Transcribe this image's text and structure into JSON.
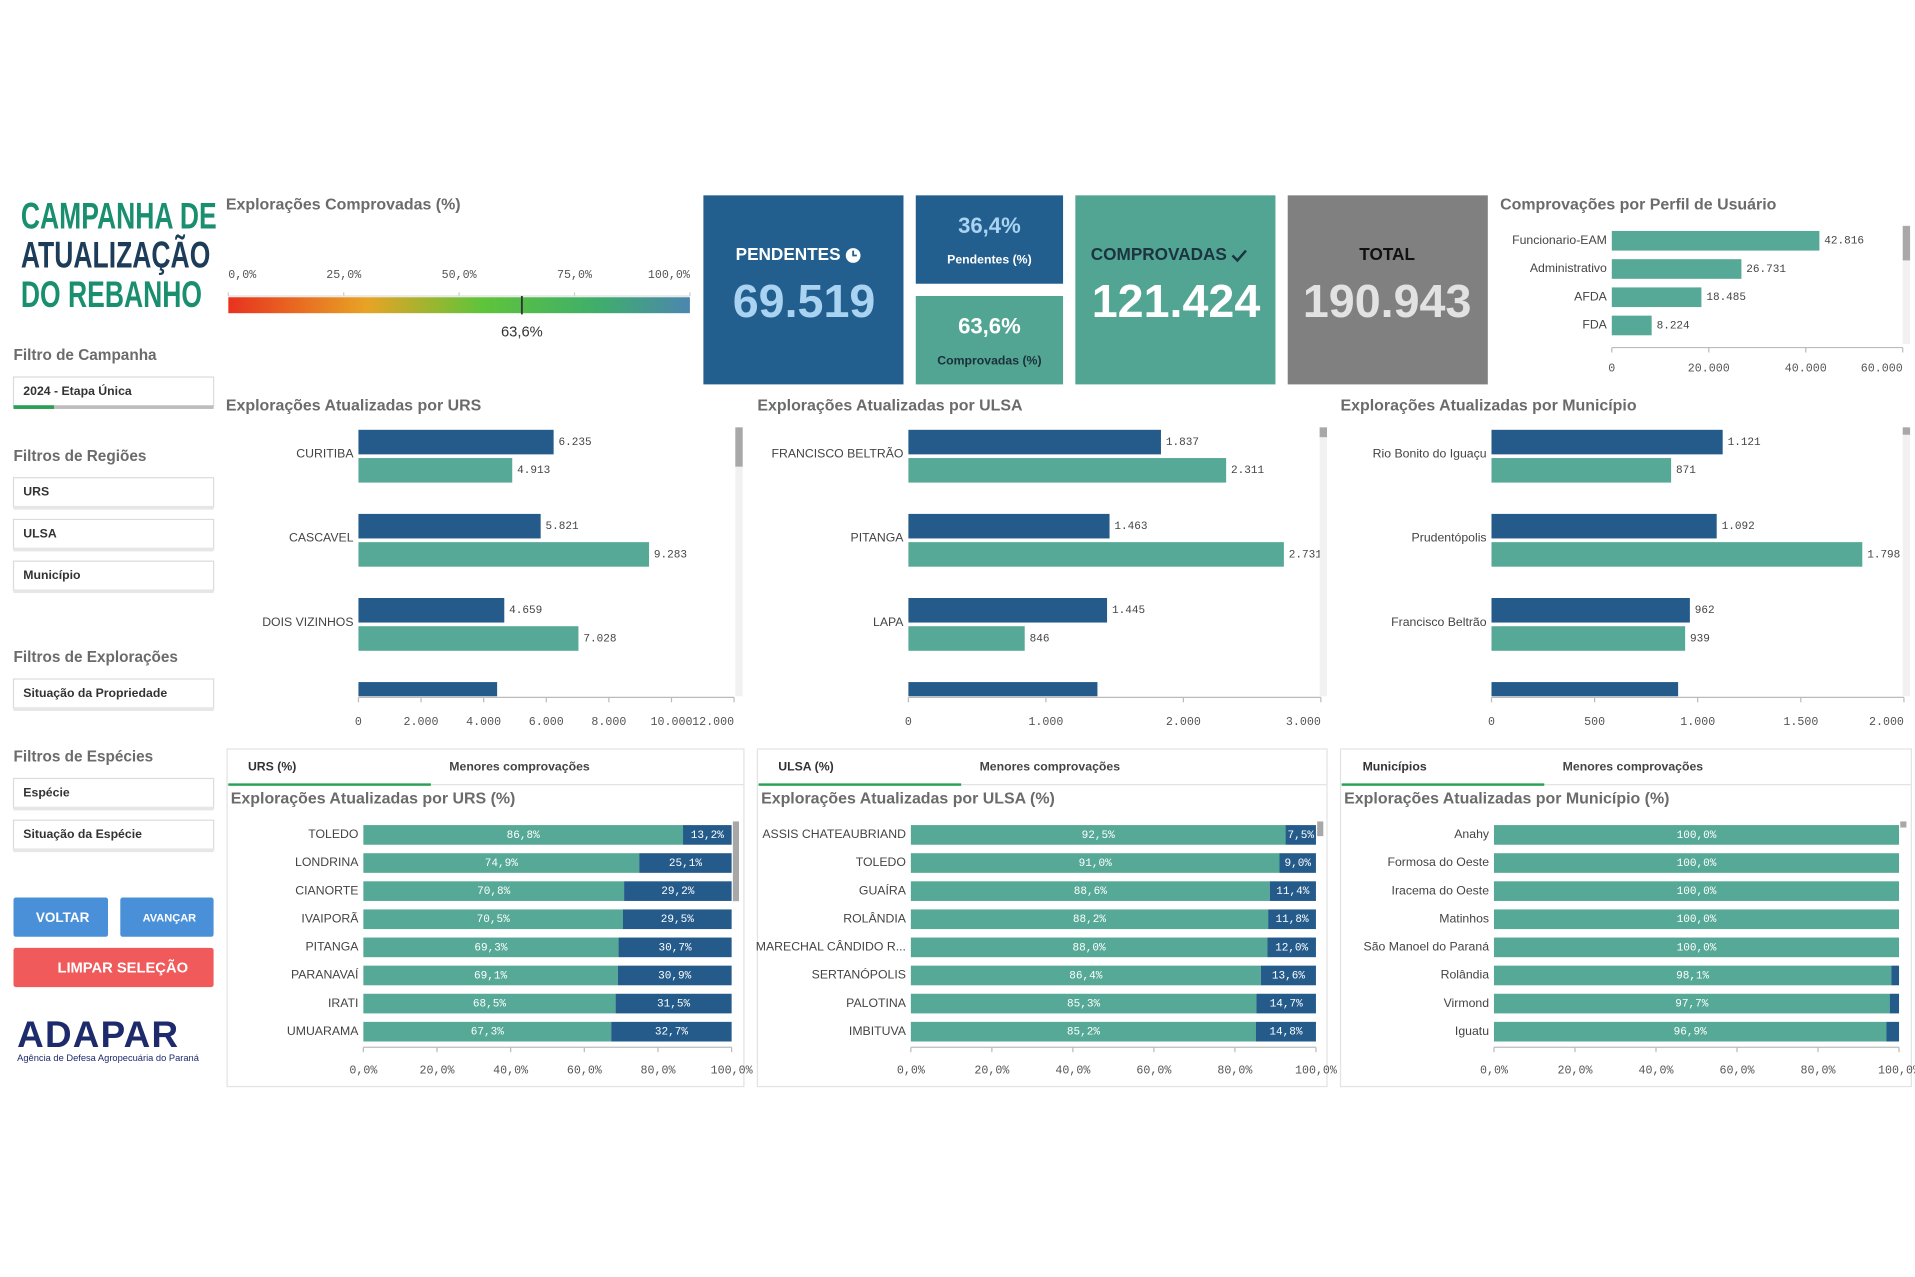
{
  "sidebar": {
    "title": [
      "CAMPANHA DE",
      "ATUALIZAÇÃO",
      "DO REBANHO"
    ],
    "filters": [
      {
        "heading": "Filtro de Campanha",
        "items": [
          "2024 - Etapa Única"
        ]
      },
      {
        "heading": "Filtros de Regiões",
        "items": [
          "URS",
          "ULSA",
          "Município"
        ]
      },
      {
        "heading": "Filtros de Explorações",
        "items": [
          "Situação da Propriedade"
        ]
      },
      {
        "heading": "Filtros de Espécies",
        "items": [
          "Espécie",
          "Situação da Espécie"
        ]
      }
    ],
    "buttons": [
      "VOLTAR",
      "AVANÇAR",
      "LIMPAR SELEÇÃO"
    ],
    "logo": "ADAPAR",
    "logo_subtitle": "Agência de Defesa Agropecuária do Paraná"
  },
  "kpis": [
    {
      "label": "PENDENTES",
      "value": "69.519"
    },
    {
      "value": "36,4%",
      "label": "Pendentes (%)"
    },
    {
      "value": "63,6%",
      "label": "Comprovadas (%)"
    },
    {
      "label": "COMPROVADAS",
      "value": "121.424"
    },
    {
      "label": "TOTAL",
      "value": "190.943"
    }
  ],
  "chart_data": [
    {
      "type": "gauge",
      "title": "Explorações Comprovadas (%)",
      "value": 63.6,
      "value_label": "63,6%",
      "xlim": [
        0,
        100
      ],
      "xticks": [
        {
          "value": 0,
          "label": "0,0%"
        },
        {
          "value": 25,
          "label": "25,0%"
        },
        {
          "value": 50,
          "label": "50,0%"
        },
        {
          "value": 75,
          "label": "75,0%"
        },
        {
          "value": 100,
          "label": "100,0%"
        }
      ]
    },
    {
      "type": "bar",
      "title": "Comprovações por Perfil de Usuário",
      "categories": [
        "Funcionario-EAM",
        "Administrativo",
        "AFDA",
        "FDA"
      ],
      "series": [
        {
          "color": "#56a996",
          "values": [
            42816,
            26731,
            18485,
            8224
          ],
          "value_labels": [
            "42.816",
            "26.731",
            "18.485",
            "8.224"
          ]
        }
      ],
      "xlim": [
        0,
        60000
      ],
      "xticks": [
        0,
        {
          "value": 20000,
          "label": "20.000"
        },
        {
          "value": 40000,
          "label": "40.000"
        },
        {
          "value": 60000,
          "label": "60.000"
        }
      ]
    },
    {
      "type": "bar",
      "title": "Explorações Atualizadas por URS",
      "categories": [
        "CURITIBA",
        "CASCAVEL",
        "DOIS VIZINHOS",
        null
      ],
      "series": [
        {
          "color": "#245b8a",
          "values": [
            6235,
            5821,
            4659,
            4430
          ],
          "value_labels": [
            "6.235",
            "5.821",
            "4.659",
            null
          ]
        },
        {
          "color": "#56a996",
          "values": [
            4913,
            9283,
            7028,
            null
          ],
          "value_labels": [
            "4.913",
            "9.283",
            "7.028",
            null
          ]
        }
      ],
      "xlim": [
        0,
        12000
      ],
      "xticks": [
        0,
        {
          "value": 2000,
          "label": "2.000"
        },
        {
          "value": 4000,
          "label": "4.000"
        },
        {
          "value": 6000,
          "label": "6.000"
        },
        {
          "value": 8000,
          "label": "8.000"
        },
        {
          "value": 10000,
          "label": "10.000"
        },
        {
          "value": 12000,
          "label": "12.000"
        }
      ]
    },
    {
      "type": "bar",
      "title": "Explorações Atualizadas por ULSA",
      "categories": [
        "FRANCISCO BELTRÃO",
        "PITANGA",
        "LAPA",
        null
      ],
      "series": [
        {
          "color": "#245b8a",
          "values": [
            1837,
            1463,
            1445,
            1375
          ],
          "value_labels": [
            "1.837",
            "1.463",
            "1.445",
            null
          ]
        },
        {
          "color": "#56a996",
          "values": [
            2311,
            2731,
            846,
            null
          ],
          "value_labels": [
            "2.311",
            "2.731",
            "846",
            null
          ]
        }
      ],
      "xlim": [
        0,
        3000
      ],
      "xticks": [
        0,
        {
          "value": 1000,
          "label": "1.000"
        },
        {
          "value": 2000,
          "label": "2.000"
        },
        {
          "value": 3000,
          "label": "3.000"
        }
      ]
    },
    {
      "type": "bar",
      "title": "Explorações Atualizadas por Município",
      "categories": [
        "Rio Bonito do Iguaçu",
        "Prudentópolis",
        "Francisco Beltrão",
        null
      ],
      "series": [
        {
          "color": "#245b8a",
          "values": [
            1121,
            1092,
            962,
            905
          ],
          "value_labels": [
            "1.121",
            "1.092",
            "962",
            null
          ]
        },
        {
          "color": "#56a996",
          "values": [
            871,
            1798,
            939,
            null
          ],
          "value_labels": [
            "871",
            "1.798",
            "939",
            null
          ]
        }
      ],
      "xlim": [
        0,
        2000
      ],
      "xticks": [
        0,
        500,
        {
          "value": 1000,
          "label": "1.000"
        },
        {
          "value": 1500,
          "label": "1.500"
        },
        {
          "value": 2000,
          "label": "2.000"
        }
      ]
    },
    {
      "type": "stacked_bar",
      "tabs": [
        "URS (%)",
        "Menores comprovações"
      ],
      "title": "Explorações Atualizadas por URS (%)",
      "categories": [
        "TOLEDO",
        "LONDRINA",
        "CIANORTE",
        "IVAIPORÃ",
        "PITANGA",
        "PARANAVAÍ",
        "IRATI",
        "UMUARAMA"
      ],
      "series": [
        {
          "color": "#56a996",
          "values": [
            86.8,
            74.9,
            70.8,
            70.5,
            69.3,
            69.1,
            68.5,
            67.3
          ],
          "value_labels": [
            "86,8%",
            "74,9%",
            "70,8%",
            "70,5%",
            "69,3%",
            "69,1%",
            "68,5%",
            "67,3%"
          ]
        },
        {
          "color": "#245b8a",
          "values": [
            13.2,
            25.1,
            29.2,
            29.5,
            30.7,
            30.9,
            31.5,
            32.7
          ],
          "value_labels": [
            "13,2%",
            "25,1%",
            "29,2%",
            "29,5%",
            "30,7%",
            "30,9%",
            "31,5%",
            "32,7%"
          ]
        }
      ],
      "xlim": [
        0,
        100
      ],
      "xticks": [
        {
          "value": 0,
          "label": "0,0%"
        },
        {
          "value": 20,
          "label": "20,0%"
        },
        {
          "value": 40,
          "label": "40,0%"
        },
        {
          "value": 60,
          "label": "60,0%"
        },
        {
          "value": 80,
          "label": "80,0%"
        },
        {
          "value": 100,
          "label": "100,0%"
        }
      ]
    },
    {
      "type": "stacked_bar",
      "tabs": [
        "ULSA (%)",
        "Menores comprovações"
      ],
      "title": "Explorações Atualizadas por ULSA (%)",
      "categories": [
        "ASSIS CHATEAUBRIAND",
        "TOLEDO",
        "GUAÍRA",
        "ROLÂNDIA",
        "MARECHAL CÂNDIDO R...",
        "SERTANÓPOLIS",
        "PALOTINA",
        "IMBITUVA"
      ],
      "series": [
        {
          "color": "#56a996",
          "values": [
            92.5,
            91.0,
            88.6,
            88.2,
            88.0,
            86.4,
            85.3,
            85.2
          ],
          "value_labels": [
            "92,5%",
            "91,0%",
            "88,6%",
            "88,2%",
            "88,0%",
            "86,4%",
            "85,3%",
            "85,2%"
          ]
        },
        {
          "color": "#245b8a",
          "values": [
            7.5,
            9.0,
            11.4,
            11.8,
            12.0,
            13.6,
            14.7,
            14.8
          ],
          "value_labels": [
            "7,5%",
            "9,0%",
            "11,4%",
            "11,8%",
            "12,0%",
            "13,6%",
            "14,7%",
            "14,8%"
          ]
        }
      ],
      "xlim": [
        0,
        100
      ],
      "xticks": [
        {
          "value": 0,
          "label": "0,0%"
        },
        {
          "value": 20,
          "label": "20,0%"
        },
        {
          "value": 40,
          "label": "40,0%"
        },
        {
          "value": 60,
          "label": "60,0%"
        },
        {
          "value": 80,
          "label": "80,0%"
        },
        {
          "value": 100,
          "label": "100,0%"
        }
      ]
    },
    {
      "type": "stacked_bar",
      "tabs": [
        "Municípios",
        "Menores comprovações"
      ],
      "title": "Explorações Atualizadas por Município (%)",
      "categories": [
        "Anahy",
        "Formosa do Oeste",
        "Iracema do Oeste",
        "Matinhos",
        "São Manoel do Paraná",
        "Rolândia",
        "Virmond",
        "Iguatu"
      ],
      "series": [
        {
          "color": "#56a996",
          "values": [
            100,
            100,
            100,
            100,
            100,
            98.1,
            97.7,
            96.9
          ],
          "value_labels": [
            "100,0%",
            "100,0%",
            "100,0%",
            "100,0%",
            "100,0%",
            "98,1%",
            "97,7%",
            "96,9%"
          ]
        },
        {
          "color": "#245b8a",
          "values": [
            0,
            0,
            0,
            0,
            0,
            1.9,
            2.3,
            3.1
          ]
        }
      ],
      "xlim": [
        0,
        100
      ],
      "xticks": [
        {
          "value": 0,
          "label": "0,0%"
        },
        {
          "value": 20,
          "label": "20,0%"
        },
        {
          "value": 40,
          "label": "40,0%"
        },
        {
          "value": 60,
          "label": "60,0%"
        },
        {
          "value": 80,
          "label": "80,0%"
        },
        {
          "value": 100,
          "label": "100,0%"
        }
      ]
    }
  ]
}
